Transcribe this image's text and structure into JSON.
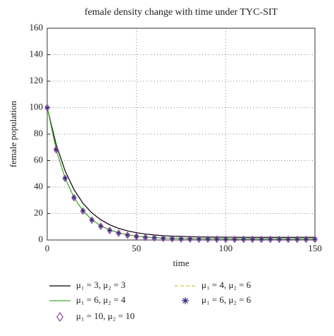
{
  "chart_data": {
    "type": "line",
    "title": "female density change with time under TYC-SIT",
    "x_label": "time",
    "y_label": "female population",
    "x": [
      0,
      5,
      10,
      15,
      20,
      25,
      30,
      35,
      40,
      45,
      50,
      55,
      60,
      65,
      70,
      75,
      80,
      85,
      90,
      95,
      100,
      105,
      110,
      115,
      120,
      125,
      130,
      135,
      140,
      145,
      150
    ],
    "series": [
      {
        "name": "μ₁ = 3, μ₂ = 3",
        "color": "#000000",
        "style": "solid",
        "values": [
          100,
          72.2,
          52.3,
          38.1,
          27.8,
          20.5,
          15.3,
          11.5,
          8.8,
          6.9,
          5.5,
          4.5,
          3.8,
          3.3,
          2.9,
          2.7,
          2.5,
          2.3,
          2.2,
          2.2,
          2.1,
          2.1,
          2.0,
          2.0,
          2.0,
          2.0,
          2.0,
          2.0,
          2.0,
          2.0,
          2.0
        ]
      },
      {
        "name": "μ₁ = 4, μ₂ = 6",
        "color": "#d4c040",
        "style": "dashed",
        "values": [
          100,
          68.4,
          46.9,
          32.2,
          22.3,
          15.5,
          10.9,
          7.7,
          5.6,
          4.1,
          3.1,
          2.4,
          2.0,
          1.7,
          1.5,
          1.3,
          1.2,
          1.1,
          1.1,
          1.1,
          1.0,
          1.0,
          1.0,
          1.0,
          1.0,
          1.0,
          1.0,
          1.0,
          1.0,
          1.0,
          1.0
        ]
      },
      {
        "name": "μ₁ = 6, μ₂ = 4",
        "color": "#3cae2c",
        "style": "solid",
        "values": [
          100,
          68.3,
          46.8,
          32.1,
          22.1,
          15.3,
          10.7,
          7.5,
          5.4,
          3.9,
          2.9,
          2.2,
          1.8,
          1.5,
          1.3,
          1.1,
          1.0,
          0.9,
          0.9,
          0.9,
          0.8,
          0.8,
          0.8,
          0.8,
          0.8,
          0.8,
          0.8,
          0.8,
          0.8,
          0.8,
          0.8
        ]
      },
      {
        "name": "μ₁ = 6, μ₂ = 6",
        "color": "#33287a",
        "style": "asterisk",
        "values": [
          100,
          68.3,
          46.7,
          32.0,
          22.0,
          15.1,
          10.5,
          7.3,
          5.2,
          3.7,
          2.7,
          2.0,
          1.6,
          1.3,
          1.1,
          0.9,
          0.8,
          0.7,
          0.7,
          0.7,
          0.6,
          0.6,
          0.6,
          0.6,
          0.6,
          0.6,
          0.6,
          0.6,
          0.6,
          0.6,
          0.6
        ]
      },
      {
        "name": "μ₁ = 10, μ₂ = 10",
        "color": "#8a3fa6",
        "style": "diamond",
        "values": [
          100,
          68.2,
          46.6,
          31.9,
          21.9,
          15.0,
          10.4,
          7.2,
          5.1,
          3.6,
          2.6,
          1.9,
          1.5,
          1.2,
          1.0,
          0.8,
          0.7,
          0.6,
          0.6,
          0.6,
          0.5,
          0.5,
          0.5,
          0.5,
          0.5,
          0.5,
          0.5,
          0.5,
          0.5,
          0.5,
          0.5
        ]
      }
    ],
    "xlim": [
      0,
      150
    ],
    "xticks": [
      0,
      50,
      100,
      150
    ],
    "ylim": [
      0,
      160
    ],
    "yticks": [
      0,
      20,
      40,
      60,
      80,
      100,
      120,
      140,
      160
    ],
    "grid": true,
    "legend": "below"
  }
}
